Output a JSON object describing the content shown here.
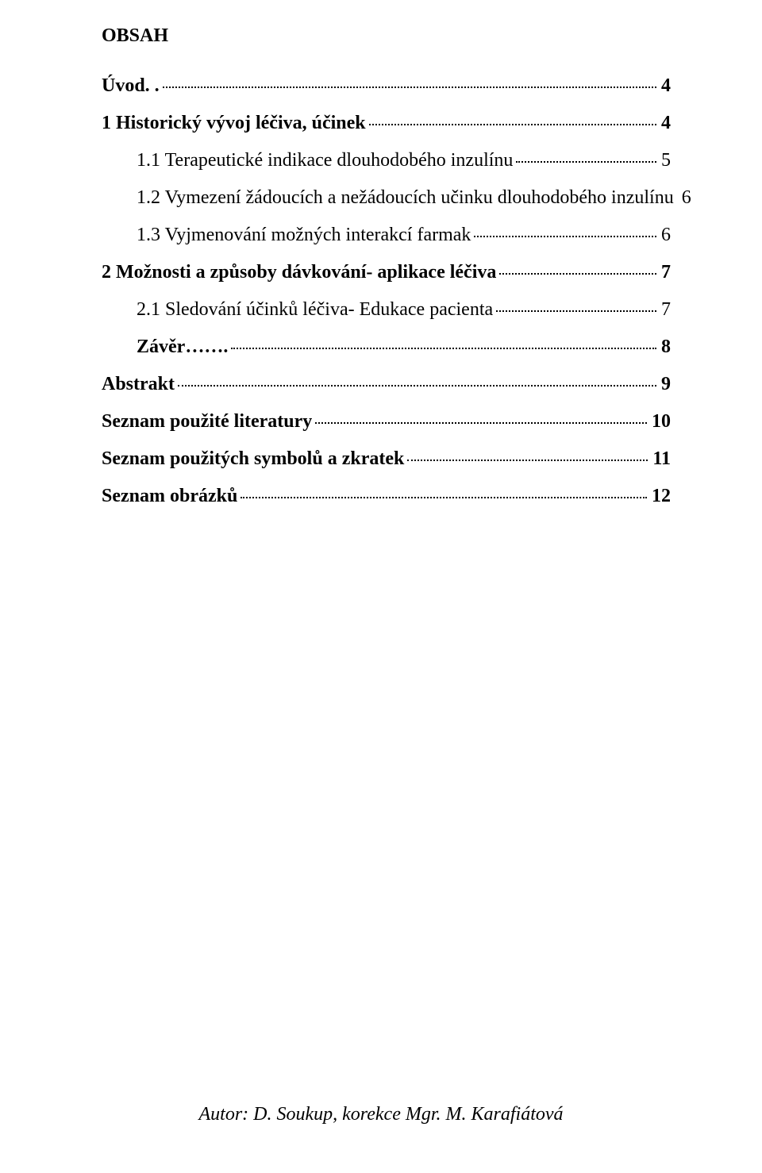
{
  "toc": {
    "title": "OBSAH",
    "title_fontsize": 24,
    "entry_fontsize": 24,
    "entries": [
      {
        "label": "Úvod. .",
        "page": "4",
        "bold": true,
        "indent": 0
      },
      {
        "label": "1      Historický vývoj léčiva, účinek",
        "page": "4",
        "bold": true,
        "indent": 0
      },
      {
        "label": "1.1     Terapeutické indikace dlouhodobého inzulínu",
        "page": "5",
        "bold": false,
        "indent": 1
      },
      {
        "label": "1.2     Vymezení žádoucích a nežádoucích učinku dlouhodobého inzulínu",
        "page": "6",
        "bold": false,
        "indent": 1
      },
      {
        "label": "1.3     Vyjmenování možných interakcí farmak",
        "page": "6",
        "bold": false,
        "indent": 1
      },
      {
        "label": "2      Možnosti a způsoby dávkování- aplikace léčiva",
        "page": "7",
        "bold": true,
        "indent": 0
      },
      {
        "label": "2.1     Sledování účinků léčiva- Edukace pacienta",
        "page": "7",
        "bold": false,
        "indent": 1
      },
      {
        "label": "Závěr…….",
        "page": "8",
        "bold": true,
        "indent": 2
      },
      {
        "label": "Abstrakt",
        "page": "9",
        "bold": true,
        "indent": 0
      },
      {
        "label": "Seznam použité literatury",
        "page": "10",
        "bold": true,
        "indent": 0
      },
      {
        "label": "Seznam použitých symbolů a zkratek",
        "page": "11",
        "bold": true,
        "indent": 0
      },
      {
        "label": "Seznam obrázků",
        "page": "12",
        "bold": true,
        "indent": 0
      }
    ]
  },
  "footer": {
    "text": "Autor: D. Soukup, korekce Mgr. M. Karafiátová",
    "fontsize": 24
  },
  "colors": {
    "text": "#000000",
    "background": "#ffffff"
  }
}
